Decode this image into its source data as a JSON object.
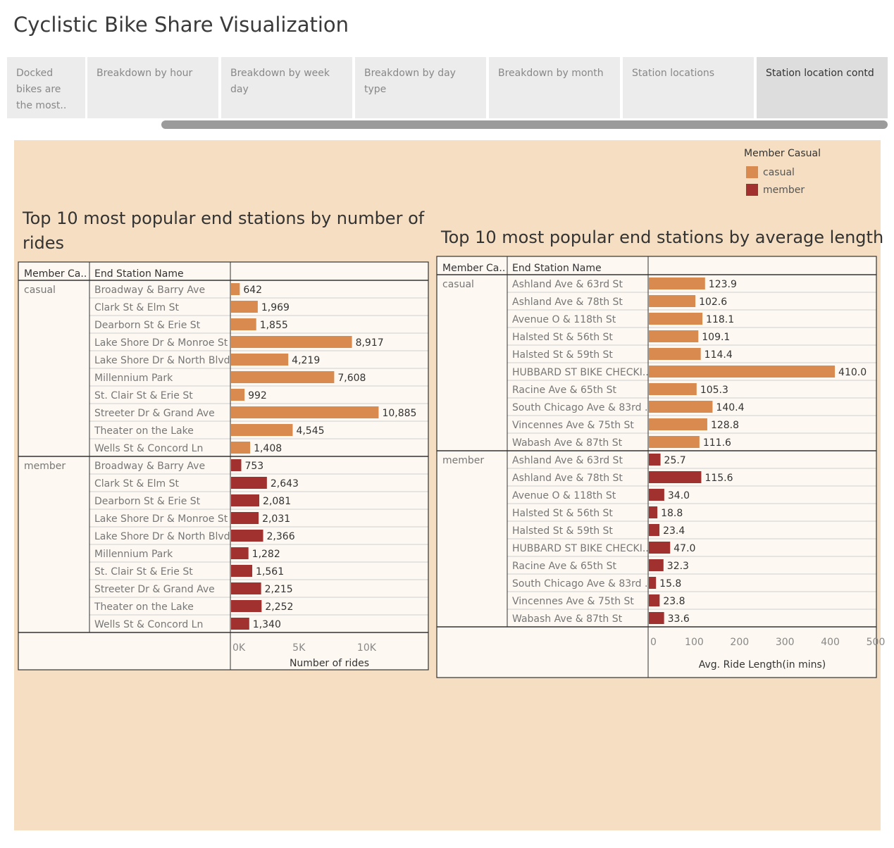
{
  "title": "Cyclistic Bike Share Visualization",
  "tabs": [
    {
      "label": "Docked bikes are the most..",
      "active": false
    },
    {
      "label": "Breakdown by hour",
      "active": false
    },
    {
      "label": "Breakdown by week day",
      "active": false
    },
    {
      "label": "Breakdown by day type",
      "active": false
    },
    {
      "label": "Breakdown by month",
      "active": false
    },
    {
      "label": "Station locations",
      "active": false
    },
    {
      "label": "Station location contd",
      "active": true
    }
  ],
  "legend": {
    "title": "Member Casual",
    "items": [
      {
        "label": "casual",
        "color": "#d98b4f"
      },
      {
        "label": "member",
        "color": "#a0312f"
      }
    ]
  },
  "chart_data": [
    {
      "type": "bar",
      "orientation": "horizontal",
      "title": "Top 10 most popular end stations by number of rides",
      "row_headers": [
        "Member Ca..",
        "End Station Name"
      ],
      "xlabel": "Number of rides",
      "xlim": [
        0,
        14500
      ],
      "ticks": [
        {
          "value": 0,
          "label": "0K"
        },
        {
          "value": 5000,
          "label": "5K"
        },
        {
          "value": 10000,
          "label": "10K"
        }
      ],
      "groups": [
        {
          "name": "casual",
          "color": "#d98b4f",
          "categories": [
            "Broadway & Barry Ave",
            "Clark St & Elm St",
            "Dearborn St & Erie St",
            "Lake Shore Dr & Monroe St",
            "Lake Shore Dr & North Blvd",
            "Millennium Park",
            "St. Clair St & Erie St",
            "Streeter Dr & Grand Ave",
            "Theater on the Lake",
            "Wells St & Concord Ln"
          ],
          "values": [
            642,
            1969,
            1855,
            8917,
            4219,
            7608,
            992,
            10885,
            4545,
            1408
          ],
          "labels": [
            "642",
            "1,969",
            "1,855",
            "8,917",
            "4,219",
            "7,608",
            "992",
            "10,885",
            "4,545",
            "1,408"
          ]
        },
        {
          "name": "member",
          "color": "#a0312f",
          "categories": [
            "Broadway & Barry Ave",
            "Clark St & Elm St",
            "Dearborn St & Erie St",
            "Lake Shore Dr & Monroe St",
            "Lake Shore Dr & North Blvd",
            "Millennium Park",
            "St. Clair St & Erie St",
            "Streeter Dr & Grand Ave",
            "Theater on the Lake",
            "Wells St & Concord Ln"
          ],
          "values": [
            753,
            2643,
            2081,
            2031,
            2366,
            1282,
            1561,
            2215,
            2252,
            1340
          ],
          "labels": [
            "753",
            "2,643",
            "2,081",
            "2,031",
            "2,366",
            "1,282",
            "1,561",
            "2,215",
            "2,252",
            "1,340"
          ]
        }
      ]
    },
    {
      "type": "bar",
      "orientation": "horizontal",
      "title": "Top 10 most popular end stations by average length",
      "row_headers": [
        "Member Ca..",
        "End Station Name"
      ],
      "xlabel": "Avg. Ride Length(in mins)",
      "xlim": [
        0,
        500
      ],
      "ticks": [
        {
          "value": 0,
          "label": "0"
        },
        {
          "value": 100,
          "label": "100"
        },
        {
          "value": 200,
          "label": "200"
        },
        {
          "value": 300,
          "label": "300"
        },
        {
          "value": 400,
          "label": "400"
        },
        {
          "value": 500,
          "label": "500"
        }
      ],
      "groups": [
        {
          "name": "casual",
          "color": "#d98b4f",
          "categories": [
            "Ashland Ave & 63rd St",
            "Ashland Ave & 78th St",
            "Avenue O & 118th St",
            "Halsted St & 56th St",
            "Halsted St & 59th St",
            "HUBBARD ST BIKE CHECKI..",
            "Racine Ave & 65th St",
            "South Chicago Ave & 83rd ..",
            "Vincennes Ave & 75th St",
            "Wabash Ave & 87th St"
          ],
          "values": [
            123.9,
            102.6,
            118.1,
            109.1,
            114.4,
            410.0,
            105.3,
            140.4,
            128.8,
            111.6
          ],
          "labels": [
            "123.9",
            "102.6",
            "118.1",
            "109.1",
            "114.4",
            "410.0",
            "105.3",
            "140.4",
            "128.8",
            "111.6"
          ]
        },
        {
          "name": "member",
          "color": "#a0312f",
          "categories": [
            "Ashland Ave & 63rd St",
            "Ashland Ave & 78th St",
            "Avenue O & 118th St",
            "Halsted St & 56th St",
            "Halsted St & 59th St",
            "HUBBARD ST BIKE CHECKI..",
            "Racine Ave & 65th St",
            "South Chicago Ave & 83rd ..",
            "Vincennes Ave & 75th St",
            "Wabash Ave & 87th St"
          ],
          "values": [
            25.7,
            115.6,
            34.0,
            18.8,
            23.4,
            47.0,
            32.3,
            15.8,
            23.8,
            33.6
          ],
          "labels": [
            "25.7",
            "115.6",
            "34.0",
            "18.8",
            "23.4",
            "47.0",
            "32.3",
            "15.8",
            "23.8",
            "33.6"
          ]
        }
      ]
    }
  ]
}
